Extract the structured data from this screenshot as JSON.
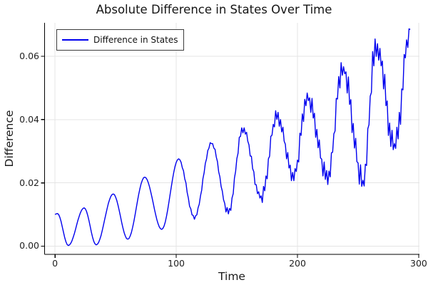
{
  "title": "Absolute Difference in States Over Time",
  "legend": {
    "label": "Difference in States"
  },
  "colors": {
    "line": "#0000EE",
    "grid": "#E4E4E4",
    "axis": "#000000",
    "tick_text": "#1F1F1F",
    "background": "#FFFFFF",
    "legend_border": "#3C3C3C"
  },
  "chart_data": {
    "type": "line",
    "title": "Absolute Difference in States Over Time",
    "xlabel": "Time",
    "ylabel": "Difference",
    "xlim": [
      -8.6,
      300.6
    ],
    "ylim": [
      -0.0026,
      0.0706
    ],
    "grid": true,
    "legend_position": "top-left",
    "x_ticks": [
      0,
      100,
      200,
      300
    ],
    "x_tick_labels": [
      "0",
      "100",
      "200",
      "300"
    ],
    "y_ticks": [
      0.0,
      0.02,
      0.04,
      0.06
    ],
    "y_tick_labels": [
      "0.00",
      "0.02",
      "0.04",
      "0.06"
    ],
    "series": [
      {
        "name": "Difference in States",
        "color": "#0000EE",
        "x_start": 0,
        "x_step": 1,
        "values": [
          0.01,
          0.0102,
          0.0103,
          0.01,
          0.0091,
          0.0078,
          0.0061,
          0.0044,
          0.0027,
          0.0014,
          0.0005,
          0.0002,
          0.0004,
          0.0009,
          0.0017,
          0.0028,
          0.004,
          0.0054,
          0.0069,
          0.0083,
          0.0095,
          0.0106,
          0.0114,
          0.0119,
          0.0121,
          0.0118,
          0.011,
          0.0097,
          0.0081,
          0.0063,
          0.0044,
          0.0028,
          0.0015,
          0.0007,
          0.0004,
          0.0006,
          0.0012,
          0.0022,
          0.0034,
          0.005,
          0.0067,
          0.0085,
          0.0102,
          0.0119,
          0.0135,
          0.0147,
          0.0157,
          0.0163,
          0.0165,
          0.0163,
          0.0155,
          0.0144,
          0.0129,
          0.0112,
          0.0094,
          0.0075,
          0.0058,
          0.0043,
          0.0032,
          0.0024,
          0.0022,
          0.0024,
          0.0032,
          0.0043,
          0.0059,
          0.0077,
          0.0098,
          0.012,
          0.0142,
          0.0163,
          0.0181,
          0.0197,
          0.0208,
          0.0216,
          0.0218,
          0.0216,
          0.021,
          0.02,
          0.0187,
          0.0171,
          0.0154,
          0.0136,
          0.0117,
          0.01,
          0.0084,
          0.0071,
          0.0061,
          0.0055,
          0.0053,
          0.0056,
          0.0064,
          0.0077,
          0.0095,
          0.0116,
          0.014,
          0.0165,
          0.0189,
          0.0213,
          0.0234,
          0.0252,
          0.0265,
          0.0273,
          0.0276,
          0.0273,
          0.0265,
          0.0248,
          0.0238,
          0.0213,
          0.02,
          0.017,
          0.0152,
          0.0126,
          0.0118,
          0.0099,
          0.0097,
          0.0085,
          0.0096,
          0.0099,
          0.0121,
          0.0133,
          0.0159,
          0.0177,
          0.0213,
          0.0232,
          0.0262,
          0.0276,
          0.0302,
          0.031,
          0.0327,
          0.0324,
          0.0324,
          0.031,
          0.0306,
          0.0282,
          0.0267,
          0.0235,
          0.0219,
          0.0189,
          0.0174,
          0.0147,
          0.0135,
          0.0108,
          0.0122,
          0.0102,
          0.0119,
          0.0113,
          0.0152,
          0.0166,
          0.0215,
          0.0237,
          0.0277,
          0.0294,
          0.0344,
          0.0347,
          0.0374,
          0.0358,
          0.0374,
          0.0354,
          0.036,
          0.0332,
          0.032,
          0.0285,
          0.0284,
          0.0245,
          0.0235,
          0.0195,
          0.0194,
          0.0166,
          0.0172,
          0.0152,
          0.0159,
          0.0138,
          0.0189,
          0.0175,
          0.0222,
          0.0213,
          0.0276,
          0.0284,
          0.0347,
          0.0351,
          0.0385,
          0.0377,
          0.0428,
          0.0401,
          0.0423,
          0.0379,
          0.04,
          0.0361,
          0.0376,
          0.0332,
          0.0322,
          0.0276,
          0.0296,
          0.0247,
          0.0256,
          0.0207,
          0.0233,
          0.0207,
          0.0245,
          0.0236,
          0.0272,
          0.0266,
          0.0357,
          0.035,
          0.0418,
          0.0394,
          0.0464,
          0.0444,
          0.0484,
          0.046,
          0.0469,
          0.0423,
          0.0467,
          0.0405,
          0.042,
          0.0344,
          0.0369,
          0.0311,
          0.0336,
          0.0279,
          0.0275,
          0.0222,
          0.0266,
          0.0211,
          0.0239,
          0.0195,
          0.0237,
          0.0219,
          0.0295,
          0.0297,
          0.0355,
          0.0364,
          0.0467,
          0.0465,
          0.0536,
          0.05,
          0.058,
          0.054,
          0.0567,
          0.0545,
          0.0551,
          0.0484,
          0.0535,
          0.0448,
          0.0463,
          0.0359,
          0.0388,
          0.031,
          0.0341,
          0.0267,
          0.0263,
          0.0196,
          0.0257,
          0.0189,
          0.0208,
          0.019,
          0.0259,
          0.0255,
          0.0371,
          0.0384,
          0.0474,
          0.0486,
          0.0615,
          0.057,
          0.0655,
          0.06,
          0.064,
          0.0588,
          0.0625,
          0.057,
          0.0585,
          0.0497,
          0.0543,
          0.0444,
          0.0459,
          0.035,
          0.0389,
          0.0315,
          0.0366,
          0.0305,
          0.0324,
          0.0309,
          0.0376,
          0.0339,
          0.0423,
          0.0385,
          0.0497,
          0.0494,
          0.0606,
          0.0595,
          0.0652,
          0.0628,
          0.0687,
          0.0685
        ]
      }
    ]
  }
}
